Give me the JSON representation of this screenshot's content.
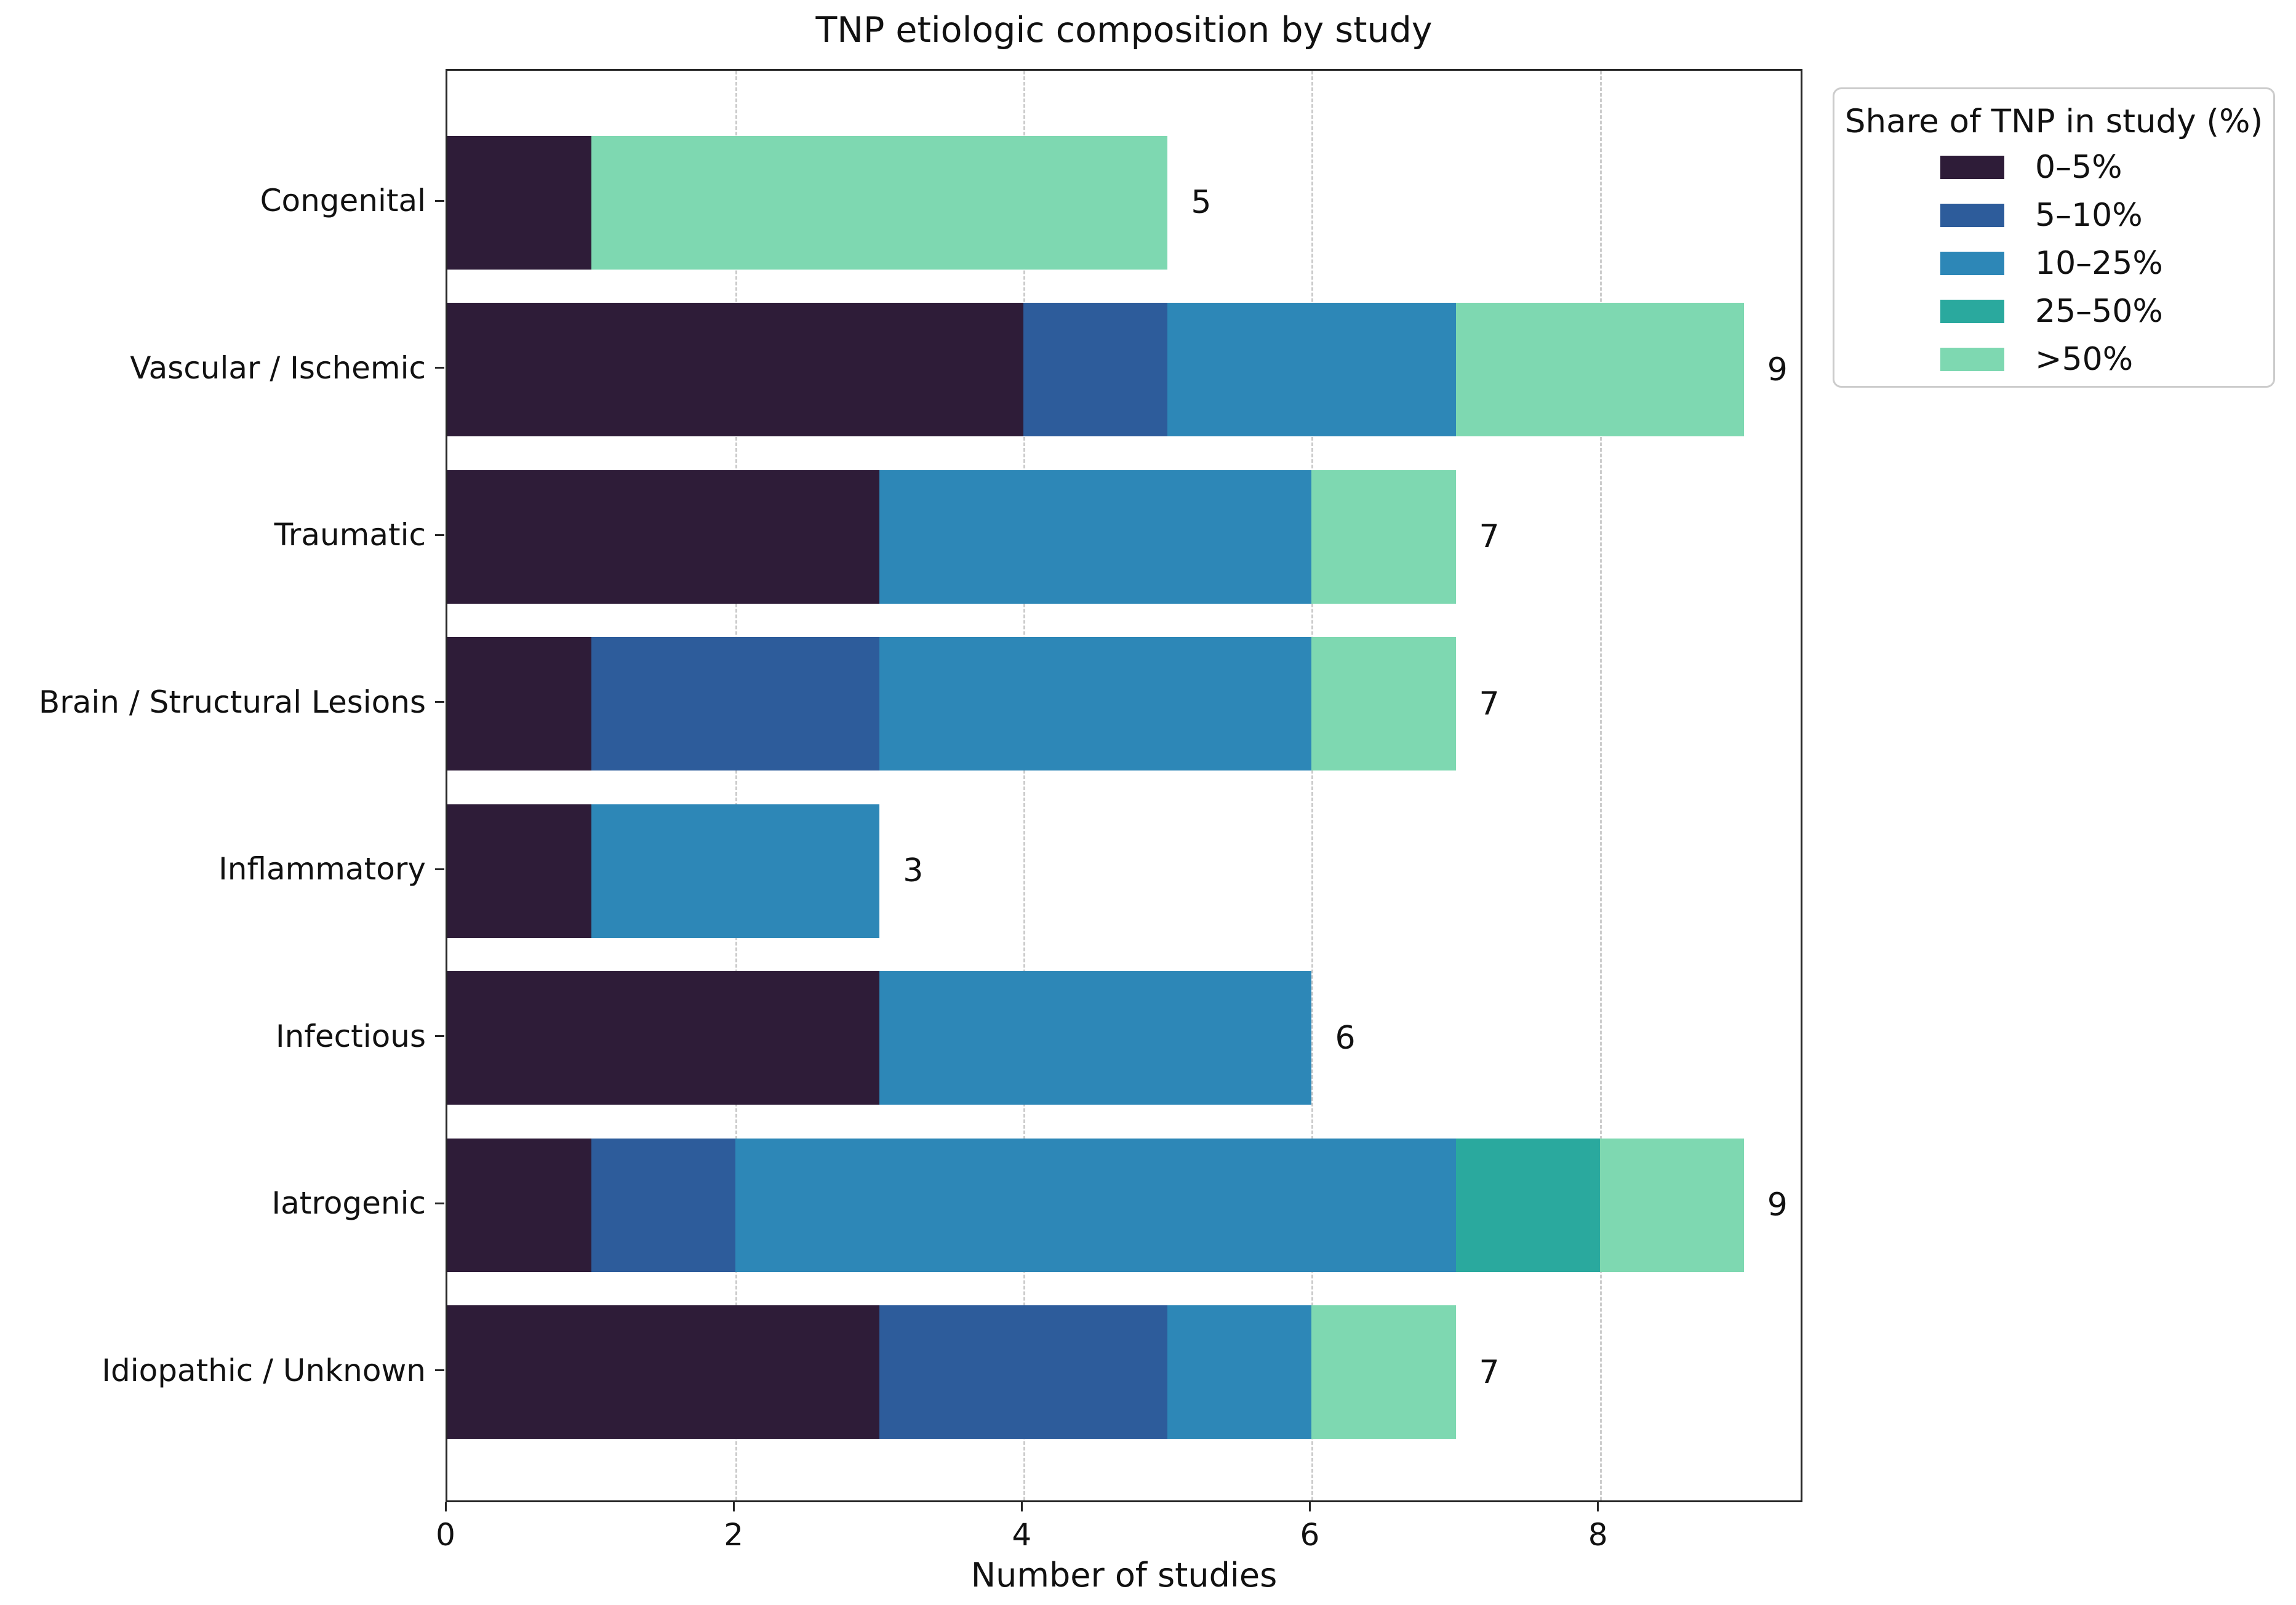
{
  "chart_data": {
    "type": "bar",
    "orientation": "horizontal",
    "stacked": true,
    "title": "TNP etiologic composition by study",
    "xlabel": "Number of studies",
    "ylabel": "",
    "categories": [
      "Congenital",
      "Vascular / Ischemic",
      "Traumatic",
      "Brain / Structural Lesions",
      "Inflammatory",
      "Infectious",
      "Iatrogenic",
      "Idiopathic / Unknown"
    ],
    "series": [
      {
        "name": "0–5%",
        "color": "#2e1c38",
        "values": [
          1,
          4,
          3,
          1,
          1,
          3,
          1,
          3
        ]
      },
      {
        "name": "5–10%",
        "color": "#2d5c9b",
        "values": [
          0,
          1,
          0,
          2,
          0,
          0,
          1,
          2
        ]
      },
      {
        "name": "10–25%",
        "color": "#2d87b7",
        "values": [
          0,
          2,
          3,
          3,
          2,
          3,
          5,
          1
        ]
      },
      {
        "name": "25–50%",
        "color": "#2aa99e",
        "values": [
          0,
          0,
          0,
          0,
          0,
          0,
          1,
          0
        ]
      },
      {
        "name": ">50%",
        "color": "#7ed8b1",
        "values": [
          4,
          2,
          1,
          1,
          0,
          0,
          1,
          1
        ]
      }
    ],
    "totals": [
      5,
      9,
      7,
      7,
      3,
      6,
      9,
      7
    ],
    "x_ticks": [
      0,
      2,
      4,
      6,
      8
    ],
    "xlim": [
      0,
      9.42
    ],
    "grid": "vertical-dashed",
    "legend_title": "Share of TNP in study (%)",
    "legend_position": "upper-right-outside"
  }
}
